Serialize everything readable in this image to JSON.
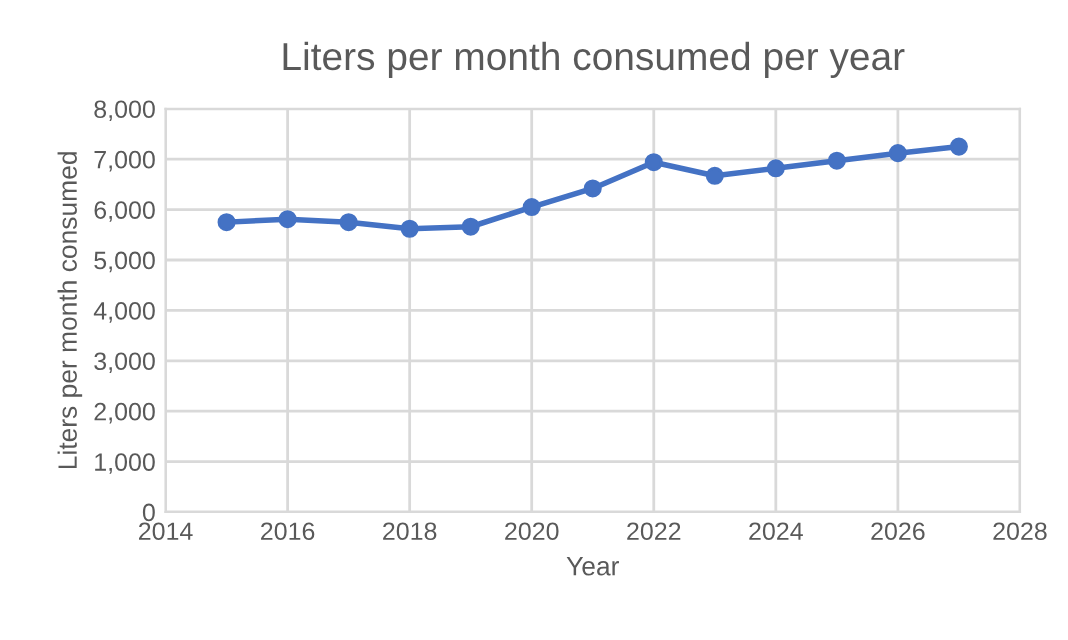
{
  "chart_data": {
    "type": "line",
    "title": "Liters per month consumed per year",
    "xlabel": "Year",
    "ylabel": "Liters per month consumed",
    "x": [
      2015,
      2016,
      2017,
      2018,
      2019,
      2020,
      2021,
      2022,
      2023,
      2024,
      2025,
      2026,
      2027
    ],
    "series": [
      {
        "color": "#4472c4",
        "values": [
          5750,
          5810,
          5750,
          5620,
          5660,
          6050,
          6420,
          6940,
          6670,
          6820,
          6970,
          7120,
          7250
        ]
      }
    ],
    "xlim": [
      2014,
      2028
    ],
    "xticks": [
      2014,
      2016,
      2018,
      2020,
      2022,
      2024,
      2026,
      2028
    ],
    "ylim": [
      0,
      8000
    ],
    "yticks": [
      {
        "value": 0,
        "label": "0"
      },
      {
        "value": 1000,
        "label": "1,000"
      },
      {
        "value": 2000,
        "label": "2,000"
      },
      {
        "value": 3000,
        "label": "3,000"
      },
      {
        "value": 4000,
        "label": "4,000"
      },
      {
        "value": 5000,
        "label": "5,000"
      },
      {
        "value": 6000,
        "label": "6,000"
      },
      {
        "value": 7000,
        "label": "7,000"
      },
      {
        "value": 8000,
        "label": "8,000"
      }
    ],
    "grid": true,
    "marker": "circle",
    "line_style": "solid",
    "legend": false
  }
}
